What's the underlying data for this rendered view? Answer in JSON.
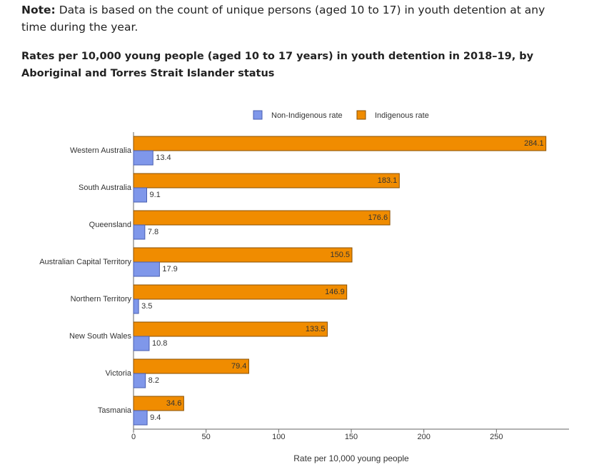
{
  "note": {
    "label": "Note:",
    "text": "Data is based on the count of unique persons (aged 10 to 17) in youth detention at any time during the year."
  },
  "chart_data": {
    "type": "bar",
    "orientation": "horizontal",
    "title": "Rates per 10,000 young people (aged 10 to 17 years) in youth detention in 2018–19, by Aboriginal and Torres Strait Islander status",
    "x_label": "Rate per 10,000 young people",
    "categories": [
      "Western Australia",
      "South Australia",
      "Queensland",
      "Australian Capital Territory",
      "Northern Territory",
      "New South Wales",
      "Victoria",
      "Tasmania"
    ],
    "series": [
      {
        "name": "Non-Indigenous rate",
        "color": "#7f97ea",
        "values": [
          13.4,
          9.1,
          7.8,
          17.9,
          3.5,
          10.8,
          8.2,
          9.4
        ]
      },
      {
        "name": "Indigenous rate",
        "color": "#f08c00",
        "values": [
          284.1,
          183.1,
          176.6,
          150.5,
          146.9,
          133.5,
          79.4,
          34.6
        ]
      }
    ],
    "xlim": [
      0,
      300
    ],
    "xticks": [
      0,
      50,
      100,
      150,
      200,
      250
    ],
    "legend": "top"
  }
}
